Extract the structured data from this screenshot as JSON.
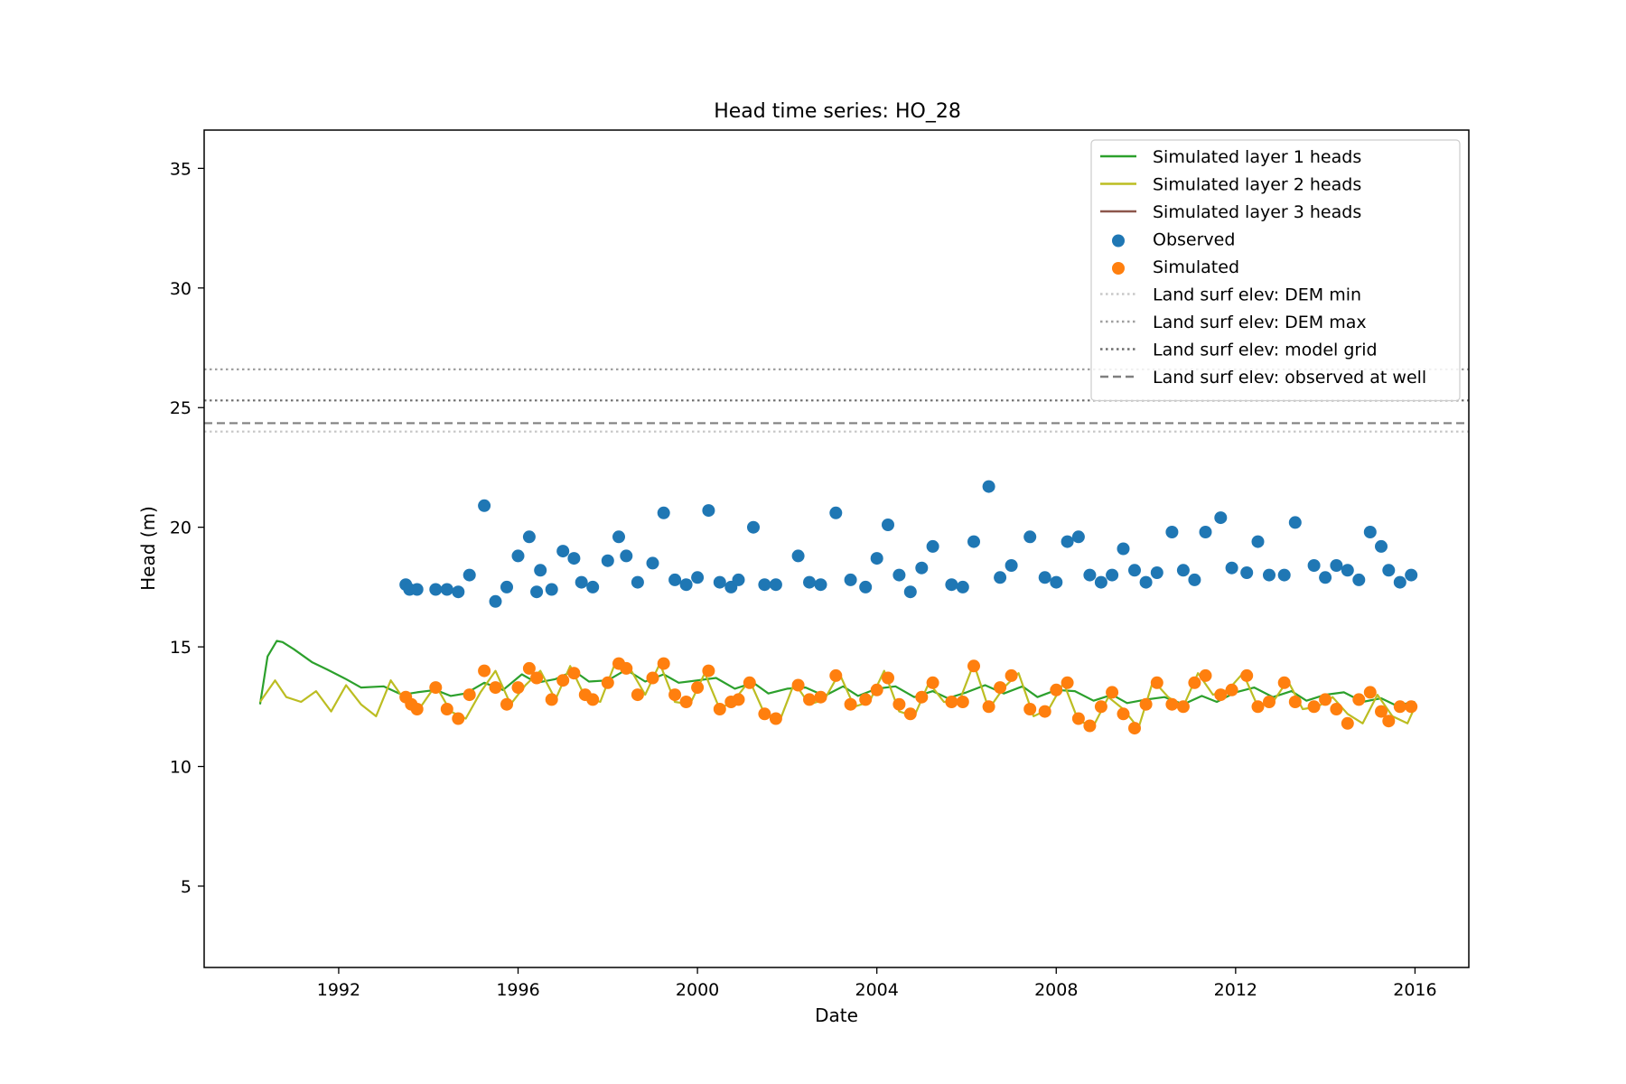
{
  "chart_data": {
    "type": "line",
    "title": "Head time series: HO_28",
    "xlabel": "Date",
    "ylabel": "Head (m)",
    "xlim": [
      "1989-01-01",
      "2017-03-15"
    ],
    "ylim": [
      1.6,
      36.6
    ],
    "x_ticks": [
      "1992-01-01",
      "1996-01-01",
      "2000-01-01",
      "2004-01-01",
      "2008-01-01",
      "2012-01-01",
      "2016-01-01"
    ],
    "x_tick_labels": [
      "1992",
      "1996",
      "2000",
      "2004",
      "2008",
      "2012",
      "2016"
    ],
    "y_ticks": [
      5,
      10,
      15,
      20,
      25,
      30,
      35
    ],
    "grid": false,
    "legend_position": "top-right",
    "reference_lines": [
      {
        "name": "Land surf elev: DEM min",
        "y": 24.0,
        "color": "#c8c8c8",
        "style": "dotted"
      },
      {
        "name": "Land surf elev: DEM max",
        "y": 26.6,
        "color": "#a0a0a0",
        "style": "dotted"
      },
      {
        "name": "Land surf elev: model grid",
        "y": 25.3,
        "color": "#6e6e6e",
        "style": "dotted"
      },
      {
        "name": "Land surf elev: observed at well",
        "y": 24.35,
        "color": "#7f7f7f",
        "style": "dashed"
      }
    ],
    "line_series": [
      {
        "name": "Simulated layer 1 heads",
        "color": "#2ca02c",
        "x": [
          "1990-04-01",
          "1990-06-01",
          "1990-08-15",
          "1990-10-01",
          "1991-01-01",
          "1991-06-01",
          "1991-10-01",
          "1992-03-01",
          "1992-07-01",
          "1993-01-01",
          "1993-06-01",
          "1993-10-01",
          "1994-03-01",
          "1994-07-01",
          "1994-11-01",
          "1995-04-01",
          "1995-09-01",
          "1996-02-01",
          "1996-06-01",
          "1996-11-01",
          "1997-04-01",
          "1997-08-01",
          "1998-01-01",
          "1998-06-01",
          "1998-11-01",
          "1999-04-01",
          "1999-08-01",
          "2000-01-01",
          "2000-06-01",
          "2000-11-01",
          "2001-04-01",
          "2001-08-01",
          "2002-01-01",
          "2002-06-01",
          "2002-11-01",
          "2003-04-01",
          "2003-08-01",
          "2004-01-01",
          "2004-06-01",
          "2004-11-01",
          "2005-04-01",
          "2005-08-01",
          "2006-01-01",
          "2006-06-01",
          "2006-11-01",
          "2007-04-01",
          "2007-08-01",
          "2008-01-01",
          "2008-06-01",
          "2008-11-01",
          "2009-04-01",
          "2009-08-01",
          "2010-01-01",
          "2010-06-01",
          "2010-11-01",
          "2011-04-01",
          "2011-08-01",
          "2012-01-01",
          "2012-06-01",
          "2012-11-01",
          "2013-04-01",
          "2013-08-01",
          "2014-01-01",
          "2014-06-01",
          "2014-11-01",
          "2015-04-01",
          "2015-08-01",
          "2016-01-01"
        ],
        "y": [
          12.6,
          14.6,
          15.25,
          15.2,
          14.9,
          14.35,
          14.05,
          13.65,
          13.3,
          13.35,
          13.0,
          13.1,
          13.2,
          12.95,
          13.05,
          13.5,
          13.2,
          13.85,
          13.5,
          13.65,
          14.0,
          13.55,
          13.6,
          14.05,
          13.55,
          13.85,
          13.5,
          13.6,
          13.7,
          13.25,
          13.5,
          13.05,
          13.25,
          13.3,
          12.95,
          13.35,
          12.95,
          13.25,
          13.35,
          12.9,
          13.15,
          12.85,
          13.1,
          13.4,
          13.05,
          13.35,
          12.9,
          13.2,
          13.15,
          12.75,
          13.0,
          12.65,
          12.8,
          12.9,
          12.6,
          12.95,
          12.7,
          13.1,
          13.3,
          12.9,
          13.15,
          12.75,
          13.0,
          13.1,
          12.7,
          12.85,
          12.55,
          12.7
        ]
      },
      {
        "name": "Simulated layer 2 heads",
        "color": "#bcbd22",
        "x": [
          "1990-04-01",
          "1990-08-01",
          "1990-11-01",
          "1991-03-01",
          "1991-07-01",
          "1991-11-01",
          "1992-03-01",
          "1992-07-01",
          "1992-11-01",
          "1993-03-01",
          "1993-07-01",
          "1993-11-01",
          "1994-03-01",
          "1994-07-01",
          "1994-11-01",
          "1995-03-01",
          "1995-07-01",
          "1995-11-01",
          "1996-03-01",
          "1996-07-01",
          "1996-11-01",
          "1997-03-01",
          "1997-07-01",
          "1997-11-01",
          "1998-03-01",
          "1998-07-01",
          "1998-11-01",
          "1999-03-01",
          "1999-07-01",
          "1999-11-01",
          "2000-03-01",
          "2000-07-01",
          "2000-11-01",
          "2001-03-01",
          "2001-07-01",
          "2001-11-01",
          "2002-03-01",
          "2002-07-01",
          "2002-11-01",
          "2003-03-01",
          "2003-07-01",
          "2003-11-01",
          "2004-03-01",
          "2004-07-01",
          "2004-11-01",
          "2005-03-01",
          "2005-07-01",
          "2005-11-01",
          "2006-03-01",
          "2006-07-01",
          "2006-11-01",
          "2007-03-01",
          "2007-07-01",
          "2007-11-01",
          "2008-03-01",
          "2008-07-01",
          "2008-11-01",
          "2009-03-01",
          "2009-07-01",
          "2009-11-01",
          "2010-03-01",
          "2010-07-01",
          "2010-11-01",
          "2011-03-01",
          "2011-07-01",
          "2011-11-01",
          "2012-03-01",
          "2012-07-01",
          "2012-11-01",
          "2013-03-01",
          "2013-07-01",
          "2013-11-01",
          "2014-03-01",
          "2014-07-01",
          "2014-11-01",
          "2015-03-01",
          "2015-07-01",
          "2015-11-01",
          "2016-01-01"
        ],
        "y": [
          12.7,
          13.6,
          12.9,
          12.7,
          13.15,
          12.3,
          13.4,
          12.6,
          12.1,
          13.6,
          12.7,
          12.5,
          13.4,
          12.3,
          12.0,
          13.1,
          14.0,
          12.6,
          13.4,
          14.0,
          12.8,
          14.2,
          12.9,
          12.7,
          14.3,
          14.1,
          13.0,
          14.3,
          12.7,
          12.6,
          13.9,
          12.4,
          12.8,
          13.6,
          12.2,
          11.9,
          13.5,
          12.6,
          12.8,
          13.9,
          12.5,
          12.7,
          14.0,
          12.3,
          12.1,
          13.5,
          12.7,
          12.7,
          14.3,
          12.4,
          13.3,
          13.9,
          12.1,
          12.4,
          13.5,
          11.9,
          11.7,
          12.9,
          12.4,
          11.6,
          13.6,
          12.9,
          12.5,
          13.9,
          13.0,
          13.2,
          13.9,
          12.5,
          12.7,
          13.6,
          12.4,
          12.5,
          12.9,
          12.2,
          11.8,
          13.0,
          12.1,
          11.8,
          12.5
        ]
      },
      {
        "name": "Simulated layer 3 heads",
        "color": "#8c564b",
        "x": [],
        "y": []
      }
    ],
    "scatter_series": [
      {
        "name": "Observed",
        "color": "#1f77b4",
        "x": [
          "1993-07-01",
          "1993-08-01",
          "1993-10-01",
          "1994-03-01",
          "1994-06-01",
          "1994-09-01",
          "1994-12-01",
          "1995-04-01",
          "1995-07-01",
          "1995-10-01",
          "1996-01-01",
          "1996-04-01",
          "1996-06-01",
          "1996-07-01",
          "1996-10-01",
          "1997-01-01",
          "1997-04-01",
          "1997-06-01",
          "1997-09-01",
          "1998-01-01",
          "1998-04-01",
          "1998-06-01",
          "1998-09-01",
          "1999-01-01",
          "1999-04-01",
          "1999-07-01",
          "1999-10-01",
          "2000-01-01",
          "2000-04-01",
          "2000-07-01",
          "2000-10-01",
          "2000-12-01",
          "2001-04-01",
          "2001-07-01",
          "2001-10-01",
          "2002-04-01",
          "2002-07-01",
          "2002-10-01",
          "2003-02-01",
          "2003-06-01",
          "2003-10-01",
          "2004-01-01",
          "2004-04-01",
          "2004-07-01",
          "2004-10-01",
          "2005-01-01",
          "2005-04-01",
          "2005-09-01",
          "2005-12-01",
          "2006-03-01",
          "2006-07-01",
          "2006-10-01",
          "2007-01-01",
          "2007-06-01",
          "2007-10-01",
          "2008-01-01",
          "2008-04-01",
          "2008-07-01",
          "2008-10-01",
          "2009-01-01",
          "2009-04-01",
          "2009-07-01",
          "2009-10-01",
          "2010-01-01",
          "2010-04-01",
          "2010-08-01",
          "2010-11-01",
          "2011-02-01",
          "2011-05-01",
          "2011-09-01",
          "2011-12-01",
          "2012-04-01",
          "2012-07-01",
          "2012-10-01",
          "2013-02-01",
          "2013-05-01",
          "2013-10-01",
          "2014-01-01",
          "2014-04-01",
          "2014-07-01",
          "2014-10-01",
          "2015-01-01",
          "2015-04-01",
          "2015-06-01",
          "2015-09-01",
          "2015-12-01"
        ],
        "y": [
          17.6,
          17.4,
          17.4,
          17.4,
          17.4,
          17.3,
          18.0,
          20.9,
          16.9,
          17.5,
          18.8,
          19.6,
          17.3,
          18.2,
          17.4,
          19.0,
          18.7,
          17.7,
          17.5,
          18.6,
          19.6,
          18.8,
          17.7,
          18.5,
          20.6,
          17.8,
          17.6,
          17.9,
          20.7,
          17.7,
          17.5,
          17.8,
          20.0,
          17.6,
          17.6,
          18.8,
          17.7,
          17.6,
          20.6,
          17.8,
          17.5,
          18.7,
          20.1,
          18.0,
          17.3,
          18.3,
          19.2,
          17.6,
          17.5,
          19.4,
          21.7,
          17.9,
          18.4,
          19.6,
          17.9,
          17.7,
          19.4,
          19.6,
          18.0,
          17.7,
          18.0,
          19.1,
          18.2,
          17.7,
          18.1,
          19.8,
          18.2,
          17.8,
          19.8,
          20.4,
          18.3,
          18.1,
          19.4,
          18.0,
          18.0,
          20.2,
          18.4,
          17.9,
          18.4,
          18.2,
          17.8,
          19.8,
          19.2,
          18.2,
          17.7,
          18.0
        ]
      },
      {
        "name": "Simulated",
        "color": "#ff7f0e",
        "x": [
          "1993-07-01",
          "1993-08-15",
          "1993-10-01",
          "1994-03-01",
          "1994-06-01",
          "1994-09-01",
          "1994-12-01",
          "1995-04-01",
          "1995-07-01",
          "1995-10-01",
          "1996-01-01",
          "1996-04-01",
          "1996-06-01",
          "1996-10-01",
          "1997-01-01",
          "1997-04-01",
          "1997-07-01",
          "1997-09-01",
          "1998-01-01",
          "1998-04-01",
          "1998-06-01",
          "1998-09-01",
          "1999-01-01",
          "1999-04-01",
          "1999-07-01",
          "1999-10-01",
          "2000-01-01",
          "2000-04-01",
          "2000-07-01",
          "2000-10-01",
          "2000-12-01",
          "2001-03-01",
          "2001-07-01",
          "2001-10-01",
          "2002-04-01",
          "2002-07-01",
          "2002-10-01",
          "2003-02-01",
          "2003-06-01",
          "2003-10-01",
          "2004-01-01",
          "2004-04-01",
          "2004-07-01",
          "2004-10-01",
          "2005-01-01",
          "2005-04-01",
          "2005-09-01",
          "2005-12-01",
          "2006-03-01",
          "2006-07-01",
          "2006-10-01",
          "2007-01-01",
          "2007-06-01",
          "2007-10-01",
          "2008-01-01",
          "2008-04-01",
          "2008-07-01",
          "2008-10-01",
          "2009-01-01",
          "2009-04-01",
          "2009-07-01",
          "2009-10-01",
          "2010-01-01",
          "2010-04-01",
          "2010-08-01",
          "2010-11-01",
          "2011-02-01",
          "2011-05-01",
          "2011-09-01",
          "2011-12-01",
          "2012-04-01",
          "2012-07-01",
          "2012-10-01",
          "2013-02-01",
          "2013-05-01",
          "2013-10-01",
          "2014-01-01",
          "2014-04-01",
          "2014-07-01",
          "2014-10-01",
          "2015-01-01",
          "2015-04-01",
          "2015-06-01",
          "2015-09-01",
          "2015-12-01"
        ],
        "y": [
          12.9,
          12.6,
          12.4,
          13.3,
          12.4,
          12.0,
          13.0,
          14.0,
          13.3,
          12.6,
          13.3,
          14.1,
          13.7,
          12.8,
          13.6,
          13.9,
          13.0,
          12.8,
          13.5,
          14.3,
          14.1,
          13.0,
          13.7,
          14.3,
          13.0,
          12.7,
          13.3,
          14.0,
          12.4,
          12.7,
          12.8,
          13.5,
          12.2,
          12.0,
          13.4,
          12.8,
          12.9,
          13.8,
          12.6,
          12.8,
          13.2,
          13.7,
          12.6,
          12.2,
          12.9,
          13.5,
          12.7,
          12.7,
          14.2,
          12.5,
          13.3,
          13.8,
          12.4,
          12.3,
          13.2,
          13.5,
          12.0,
          11.7,
          12.5,
          13.1,
          12.2,
          11.6,
          12.6,
          13.5,
          12.6,
          12.5,
          13.5,
          13.8,
          13.0,
          13.2,
          13.8,
          12.5,
          12.7,
          13.5,
          12.7,
          12.5,
          12.8,
          12.4,
          11.8,
          12.8,
          13.1,
          12.3,
          11.9,
          12.5,
          12.5
        ]
      }
    ]
  }
}
